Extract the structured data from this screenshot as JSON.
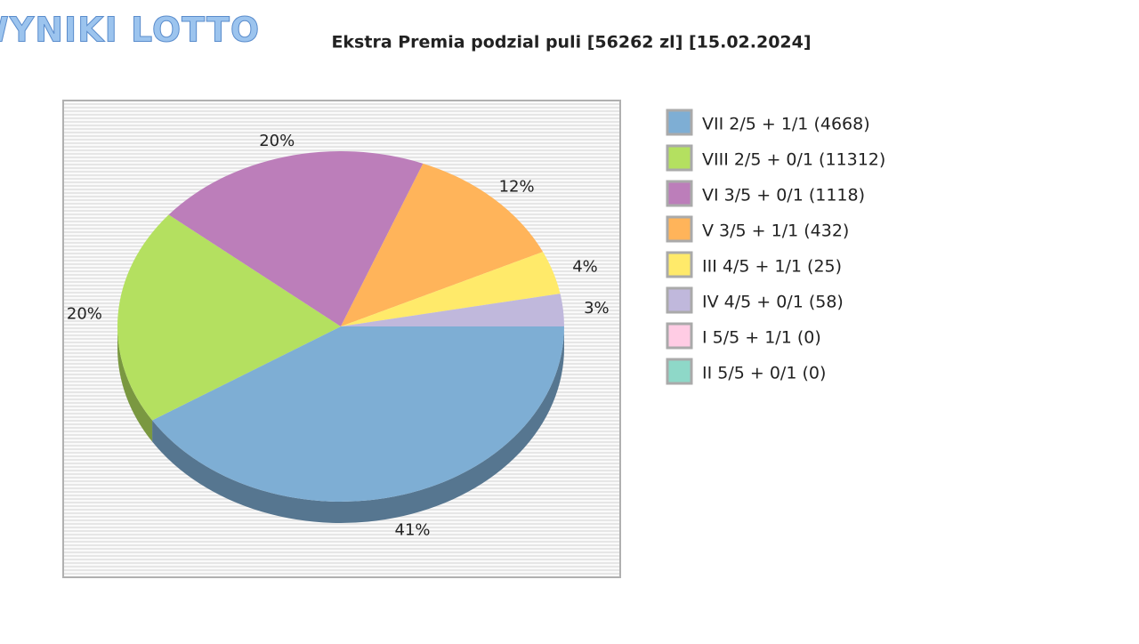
{
  "logo": "WYNIKI LOTTO",
  "chart_data": {
    "type": "pie",
    "title": "Ekstra Premia podzial puli [56262 zl] [15.02.2024]",
    "categories": [
      "VII 2/5 + 1/1 (4668)",
      "VIII 2/5 + 0/1 (11312)",
      "VI 3/5 + 0/1 (1118)",
      "V 3/5 + 1/1 (432)",
      "III 4/5 + 1/1 (25)",
      "IV 4/5 + 0/1 (58)",
      "I 5/5 + 1/1 (0)",
      "II 5/5 + 0/1 (0)"
    ],
    "values": [
      41,
      20,
      20,
      12,
      4,
      3,
      0,
      0
    ],
    "value_labels": [
      "41%",
      "20%",
      "20%",
      "12%",
      "4%",
      "3%",
      null,
      null
    ],
    "colors": [
      "#7eaed4",
      "#b4e060",
      "#bc7eba",
      "#ffb45a",
      "#ffea6a",
      "#c0b8dc",
      "#ffcce4",
      "#8ed8c8"
    ],
    "legend": "right"
  }
}
